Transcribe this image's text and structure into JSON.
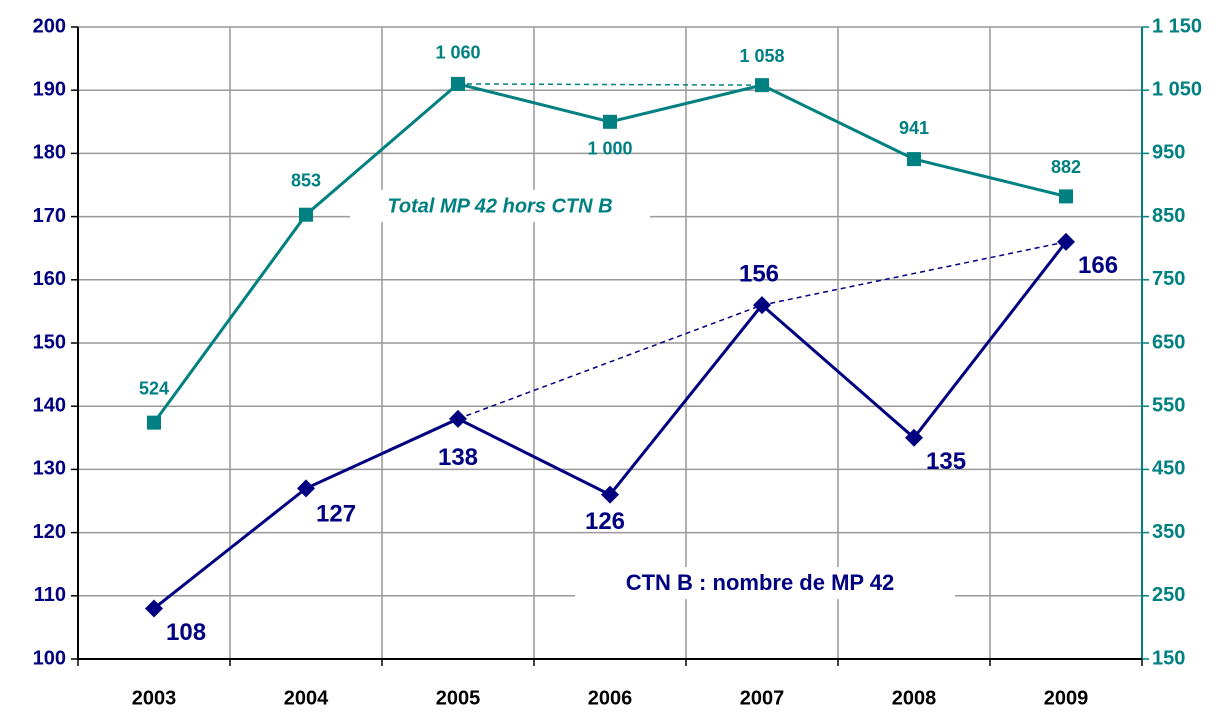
{
  "chart_data": {
    "type": "line",
    "categories": [
      "2003",
      "2004",
      "2005",
      "2006",
      "2007",
      "2008",
      "2009"
    ],
    "series": [
      {
        "name": "CTN B : nombre de MP 42",
        "color": "#000080",
        "values": [
          108,
          127,
          138,
          126,
          156,
          135,
          166
        ]
      },
      {
        "name": "Total MP 42 hors CTN B",
        "color": "#008080",
        "axis": "y2",
        "values": [
          524,
          853,
          1060,
          1000,
          1058,
          941,
          882
        ],
        "value_labels": [
          "524",
          "853",
          "1 060",
          "1 000",
          "1 058",
          "941",
          "882"
        ]
      }
    ],
    "ylim": [
      100,
      200
    ],
    "yticks": [
      100,
      110,
      120,
      130,
      140,
      150,
      160,
      170,
      180,
      190,
      200
    ],
    "y2lim": [
      150,
      1150
    ],
    "y2ticks": [
      150,
      250,
      350,
      450,
      550,
      650,
      750,
      850,
      950,
      {
        "value": 1050,
        "label": "1 050"
      },
      {
        "value": 1150,
        "label": "1 150"
      }
    ],
    "grid": true
  }
}
